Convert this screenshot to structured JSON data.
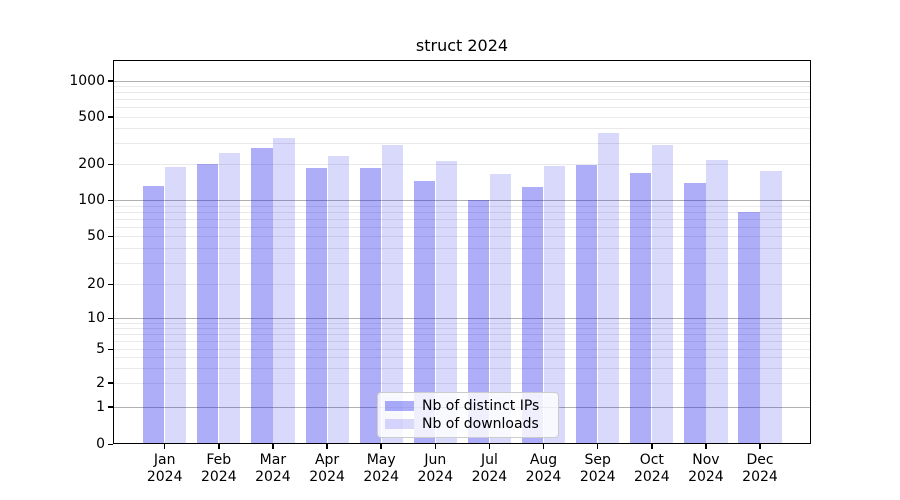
{
  "chart_data": {
    "type": "bar",
    "title": "struct 2024",
    "categories": [
      {
        "month": "Jan",
        "year": "2024"
      },
      {
        "month": "Feb",
        "year": "2024"
      },
      {
        "month": "Mar",
        "year": "2024"
      },
      {
        "month": "Apr",
        "year": "2024"
      },
      {
        "month": "May",
        "year": "2024"
      },
      {
        "month": "Jun",
        "year": "2024"
      },
      {
        "month": "Jul",
        "year": "2024"
      },
      {
        "month": "Aug",
        "year": "2024"
      },
      {
        "month": "Sep",
        "year": "2024"
      },
      {
        "month": "Oct",
        "year": "2024"
      },
      {
        "month": "Nov",
        "year": "2024"
      },
      {
        "month": "Dec",
        "year": "2024"
      }
    ],
    "series": [
      {
        "name": "Nb of distinct IPs",
        "color": "rgba(20,20,235,0.35)",
        "values": [
          130,
          199,
          271,
          184,
          185,
          145,
          101,
          129,
          198,
          167,
          140,
          79
        ]
      },
      {
        "name": "Nb of downloads",
        "color": "rgba(20,20,235,0.16)",
        "values": [
          190,
          246,
          333,
          233,
          290,
          211,
          164,
          192,
          366,
          292,
          218,
          174
        ]
      }
    ],
    "yscale": "symlog",
    "ylim": [
      0,
      1500
    ],
    "ytick_values": [
      0,
      1,
      2,
      5,
      10,
      20,
      50,
      100,
      200,
      500,
      1000
    ],
    "ytick_labels": [
      "0",
      "1",
      "2",
      "5",
      "10",
      "20",
      "50",
      "100",
      "200",
      "500",
      "1000"
    ],
    "minor_grid_values": [
      2,
      3,
      4,
      5,
      6,
      7,
      8,
      9,
      20,
      30,
      40,
      50,
      60,
      70,
      80,
      90,
      200,
      300,
      400,
      500,
      600,
      700,
      800,
      900
    ],
    "major_grid_values": [
      1,
      10,
      100,
      1000
    ],
    "grid": true,
    "legend_position": "lower-center",
    "colors": {
      "major_grid": "#b0b0b0",
      "minor_grid": "#e9e9e9",
      "axis": "#000000",
      "background": "#ffffff"
    }
  }
}
